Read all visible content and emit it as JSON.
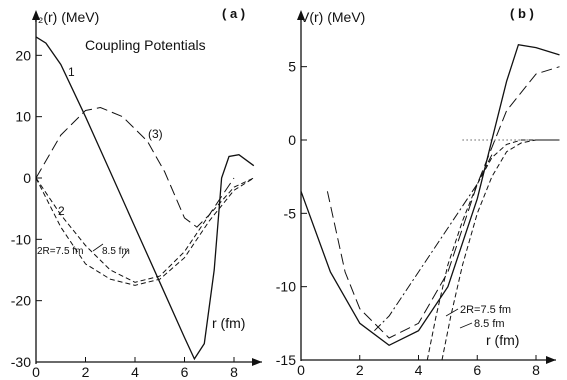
{
  "chart_data": [
    {
      "panel_label": "( a )",
      "type": "line",
      "ylabel": "I₂(r) (MeV)",
      "xlabel": "r (fm)",
      "annotation": "Coupling Potentials",
      "xlim": [
        0,
        9
      ],
      "ylim": [
        -30,
        25
      ],
      "xticks": [
        0,
        2,
        4,
        6,
        8
      ],
      "yticks": [
        20,
        10,
        0,
        -10,
        -20,
        -30
      ],
      "curve_labels": {
        "1": "1",
        "2": "2",
        "3": "(3)",
        "radii": "2R=7.5 fm",
        "radii2": "8.5 fm"
      },
      "series": [
        {
          "name": "1",
          "style": "solid",
          "x": [
            0,
            0.4,
            1,
            2,
            3,
            4,
            5,
            6,
            6.4,
            6.8,
            7.2,
            7.5,
            7.8,
            8.2,
            8.8
          ],
          "y": [
            23,
            22,
            18.5,
            10,
            1,
            -8,
            -17,
            -26,
            -29.5,
            -27,
            -15,
            0,
            3.5,
            3.8,
            2
          ]
        },
        {
          "name": "2",
          "style": "dashed",
          "x": [
            0,
            1,
            2,
            3,
            4,
            5,
            6,
            7,
            8,
            8.8
          ],
          "y": [
            0,
            -6,
            -11,
            -15,
            -17,
            -16,
            -12,
            -6,
            -1.5,
            0
          ]
        },
        {
          "name": "2b",
          "style": "dashed",
          "x": [
            0,
            1,
            2,
            3,
            4,
            5,
            6,
            7,
            8,
            8.8
          ],
          "y": [
            0,
            -8,
            -14,
            -16.5,
            -17.5,
            -16.5,
            -13,
            -7,
            -2,
            0
          ]
        },
        {
          "name": "3",
          "style": "longdash",
          "x": [
            0,
            1,
            2,
            2.6,
            3.5,
            4.5,
            5.2,
            6,
            6.5,
            7,
            7.5,
            8
          ],
          "y": [
            0,
            7,
            11,
            11.5,
            10,
            6,
            1,
            -6.5,
            -8,
            -6,
            -3,
            0
          ]
        }
      ]
    },
    {
      "panel_label": "( b )",
      "type": "line",
      "ylabel": "V(r) (MeV)",
      "xlabel": "r (fm)",
      "xlim": [
        0,
        9
      ],
      "ylim": [
        -15,
        7
      ],
      "xticks": [
        0,
        2,
        4,
        6,
        8
      ],
      "yticks": [
        5,
        0,
        -5,
        -10,
        -15
      ],
      "curve_labels": {
        "r1": "2R=7.5 fm",
        "r2": "8.5 fm"
      },
      "series": [
        {
          "name": "solid",
          "style": "solid",
          "x": [
            0,
            1,
            2,
            3,
            4,
            5,
            6,
            6.5,
            7,
            7.4,
            8,
            8.8
          ],
          "y": [
            -3.5,
            -9,
            -12.5,
            -14,
            -13,
            -10,
            -4,
            0,
            4,
            6.5,
            6.3,
            5.8
          ]
        },
        {
          "name": "longdash",
          "style": "longdash",
          "x": [
            0.9,
            1.5,
            2,
            3,
            4,
            5,
            6,
            7,
            8,
            8.8
          ],
          "y": [
            -3.5,
            -9,
            -11.5,
            -13.5,
            -12.5,
            -9,
            -3,
            2,
            4.5,
            5
          ]
        },
        {
          "name": "dash 7.5",
          "style": "dashed",
          "x": [
            4.3,
            4.6,
            5,
            5.5,
            6,
            6.5,
            7,
            7.5,
            8.8
          ],
          "y": [
            -15,
            -12,
            -8.5,
            -5.5,
            -3,
            -1.2,
            -0.3,
            0,
            0
          ]
        },
        {
          "name": "dash 8.5",
          "style": "dashed",
          "x": [
            4.8,
            5.1,
            5.5,
            6,
            6.5,
            7,
            7.5,
            8,
            8.8
          ],
          "y": [
            -15,
            -12,
            -8.5,
            -5,
            -2.5,
            -0.8,
            -0.2,
            0,
            0
          ]
        },
        {
          "name": "dashdot",
          "style": "dashdot",
          "x": [
            2.5,
            3,
            4,
            5,
            6,
            6.5
          ],
          "y": [
            -13,
            -12,
            -9,
            -6,
            -3,
            -1
          ]
        },
        {
          "name": "dotted-zero",
          "style": "dotted",
          "x": [
            5.5,
            8.8
          ],
          "y": [
            0,
            0
          ]
        }
      ]
    }
  ]
}
